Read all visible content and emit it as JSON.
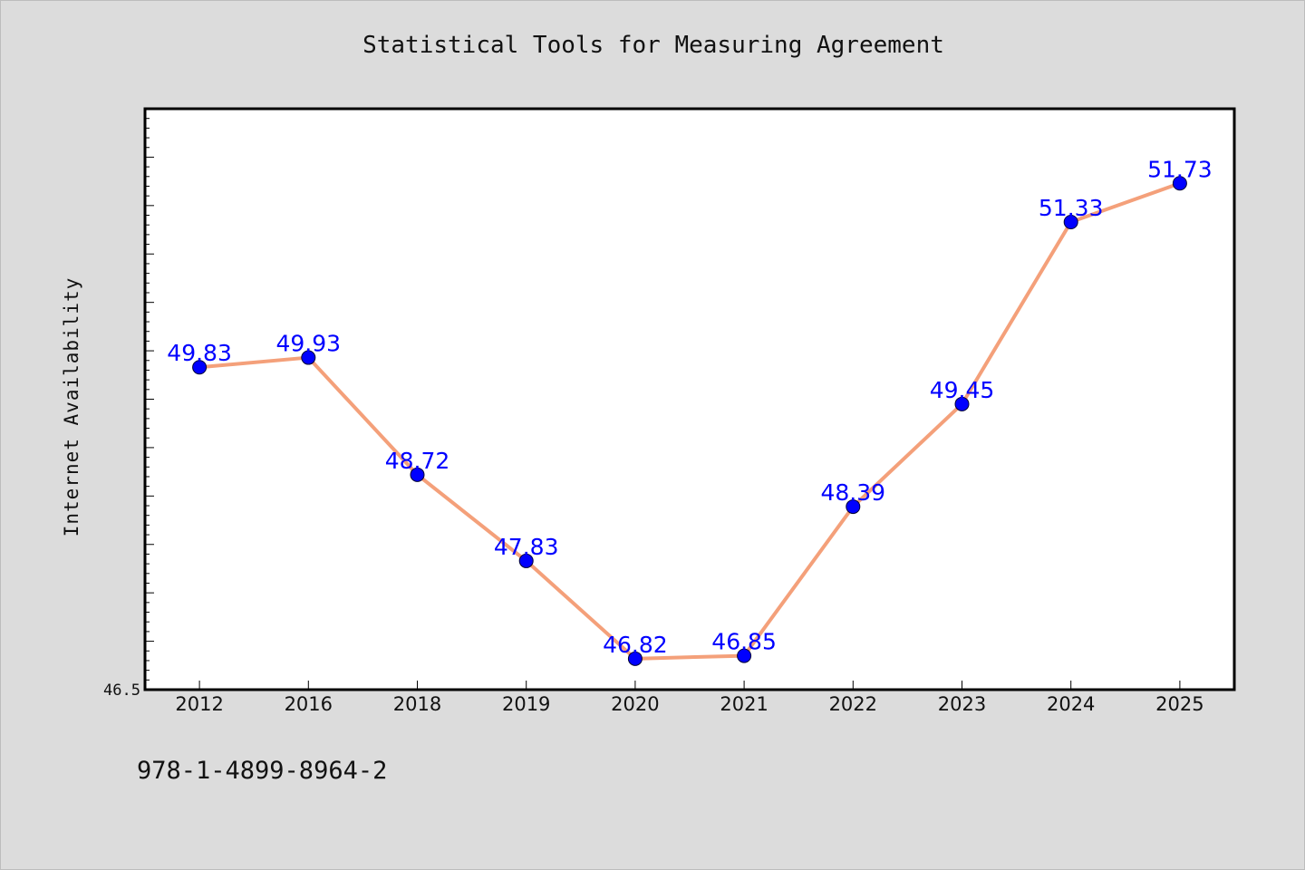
{
  "chart_data": {
    "type": "line",
    "title": "Statistical Tools for Measuring Agreement",
    "ylabel": "Internet Availability",
    "xlabel": "",
    "categories": [
      "2012",
      "2016",
      "2018",
      "2019",
      "2020",
      "2021",
      "2022",
      "2023",
      "2024",
      "2025"
    ],
    "series": [
      {
        "values": [
          49.83,
          49.93,
          48.72,
          47.83,
          46.82,
          46.85,
          48.39,
          49.45,
          51.33,
          51.73
        ],
        "labels": [
          "49.83",
          "49.93",
          "48.72",
          "47.83",
          "46.82",
          "46.85",
          "48.39",
          "49.45",
          "51.33",
          "51.73"
        ]
      }
    ],
    "ylim": [
      46.5,
      52.5
    ],
    "y_tick_labels": [
      "46.5"
    ],
    "grid": false,
    "line_color": "#f4a07a",
    "marker_color": "#0000ff",
    "data_label_color": "#0000ff"
  },
  "footer": {
    "isbn": "978-1-4899-8964-2"
  }
}
